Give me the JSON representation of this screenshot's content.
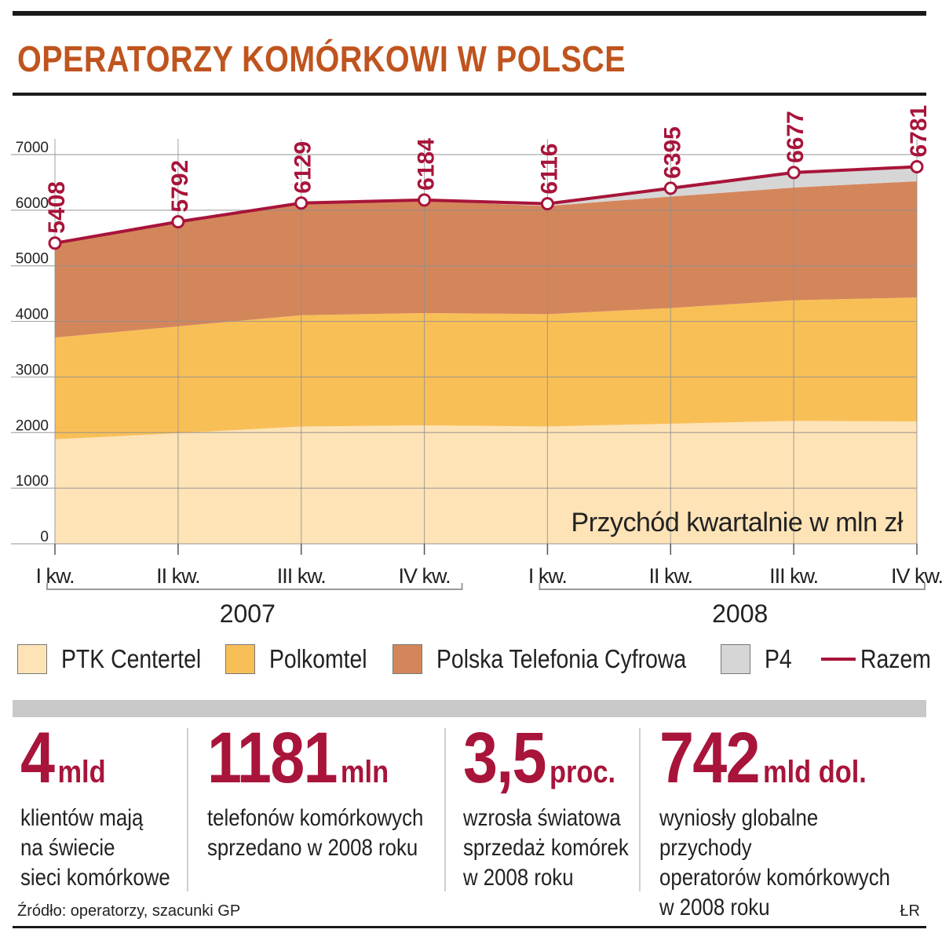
{
  "title": "OPERATORZY KOMÓRKOWI W POLSCE",
  "chart_data": {
    "type": "area",
    "title": "Przychód kwartalnie w mln zł",
    "categories": [
      "I kw.",
      "II kw.",
      "III kw.",
      "IV kw.",
      "I kw.",
      "II kw.",
      "III kw.",
      "IV kw."
    ],
    "years": [
      {
        "label": "2007",
        "from": 0,
        "to": 3
      },
      {
        "label": "2008",
        "from": 4,
        "to": 7
      }
    ],
    "ylim": [
      0,
      7000
    ],
    "yticks": [
      "0",
      "1000",
      "2000",
      "3000",
      "4000",
      "5000",
      "6000",
      "7000"
    ],
    "series": [
      {
        "name": "PTK Centertel",
        "color": "#fde3b6",
        "values": [
          1880,
          1990,
          2110,
          2130,
          2110,
          2160,
          2210,
          2200
        ]
      },
      {
        "name": "Polkomtel",
        "color": "#f9bf57",
        "values": [
          1830,
          1920,
          2000,
          2020,
          2020,
          2080,
          2170,
          2230
        ]
      },
      {
        "name": "Polska Telefonia Cyfrowa",
        "color": "#d4865b",
        "values": [
          1698,
          1882,
          2009,
          2014,
          1946,
          2005,
          2027,
          2091
        ]
      },
      {
        "name": "P4",
        "color": "#d6d6d6",
        "values": [
          0,
          0,
          10,
          20,
          40,
          150,
          270,
          260
        ]
      }
    ],
    "total": {
      "name": "Razem",
      "color": "#a8143a",
      "values": [
        5408,
        5792,
        6129,
        6184,
        6116,
        6395,
        6677,
        6781
      ],
      "labels": [
        "5408",
        "5792",
        "6129",
        "6184",
        "6116",
        "6395",
        "6677",
        "6781"
      ]
    }
  },
  "legend": {
    "ptk": "PTK Centertel",
    "polkomtel": "Polkomtel",
    "ptc": "Polska Telefonia Cyfrowa",
    "p4": "P4",
    "razem": "Razem"
  },
  "stats": [
    {
      "number": "4",
      "unit": "mld",
      "desc": "klientów mają\nna świecie\nsieci komórkowe"
    },
    {
      "number": "1181",
      "unit": "mln",
      "desc": "telefonów komórkowych\nsprzedano w 2008 roku"
    },
    {
      "number": "3,5",
      "unit": "proc.",
      "desc": "wzrosła światowa\nsprzedaż komórek\nw 2008 roku"
    },
    {
      "number": "742",
      "unit": "mld dol.",
      "desc": "wyniosły globalne przychody\noperatorów komórkowych\nw 2008 roku"
    }
  ],
  "source": "Źródło: operatorzy, szacunki GP",
  "author": "ŁR",
  "colors": {
    "accent": "#a8143a",
    "title": "#c0541e"
  }
}
